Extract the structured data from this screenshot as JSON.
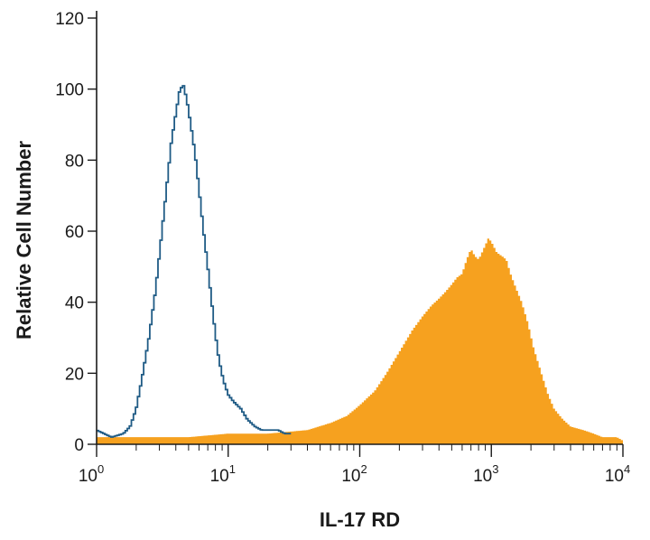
{
  "chart_data": {
    "type": "histogram",
    "xlabel": "IL-17 RD",
    "ylabel": "Relative Cell Number",
    "x_scale": "log",
    "xlim": [
      1,
      10000
    ],
    "ylim": [
      0,
      120
    ],
    "y_ticks": [
      0,
      20,
      40,
      60,
      80,
      100,
      120
    ],
    "x_ticks": [
      {
        "value": 1,
        "base": "10",
        "exp": "0"
      },
      {
        "value": 10,
        "base": "10",
        "exp": "1"
      },
      {
        "value": 100,
        "base": "10",
        "exp": "2"
      },
      {
        "value": 1000,
        "base": "10",
        "exp": "3"
      },
      {
        "value": 10000,
        "base": "10",
        "exp": "4"
      }
    ],
    "grid": false,
    "legend": "none",
    "series": [
      {
        "style": "outline",
        "color": "#1f5b85",
        "x": [
          1,
          1.3,
          1.6,
          1.8,
          2.0,
          2.2,
          2.5,
          2.8,
          3.1,
          3.4,
          3.7,
          4.0,
          4.3,
          4.6,
          4.9,
          5.2,
          5.6,
          6.0,
          6.5,
          7.0,
          7.5,
          8.0,
          8.5,
          9.2,
          10,
          11,
          12.5,
          14,
          16,
          18,
          21,
          24,
          27,
          30
        ],
        "values": [
          4,
          2,
          3,
          5,
          10,
          18,
          30,
          43,
          58,
          72,
          85,
          93,
          100,
          101,
          96,
          90,
          82,
          72,
          60,
          50,
          40,
          31,
          24,
          18,
          14,
          12,
          10,
          7,
          5,
          4,
          4,
          4,
          3,
          3
        ]
      },
      {
        "style": "filled",
        "color": "#f6a11f",
        "x": [
          1,
          2,
          5,
          10,
          20,
          40,
          60,
          80,
          100,
          130,
          160,
          200,
          250,
          300,
          350,
          400,
          450,
          500,
          550,
          600,
          650,
          700,
          750,
          800,
          850,
          900,
          950,
          1000,
          1100,
          1200,
          1300,
          1400,
          1500,
          1700,
          1900,
          2100,
          2400,
          2700,
          3000,
          3500,
          4000,
          5000,
          6000,
          7000,
          8000,
          9000,
          10000
        ],
        "values": [
          2,
          2,
          2,
          3,
          3,
          4,
          6,
          8,
          11,
          15,
          20,
          26,
          32,
          36,
          39,
          41,
          43,
          45,
          47,
          48,
          52,
          55,
          53,
          52,
          54,
          56,
          58,
          57,
          54,
          53,
          52,
          48,
          45,
          40,
          34,
          27,
          20,
          14,
          10,
          7,
          5,
          4,
          3,
          2,
          2,
          2,
          1
        ]
      }
    ]
  }
}
